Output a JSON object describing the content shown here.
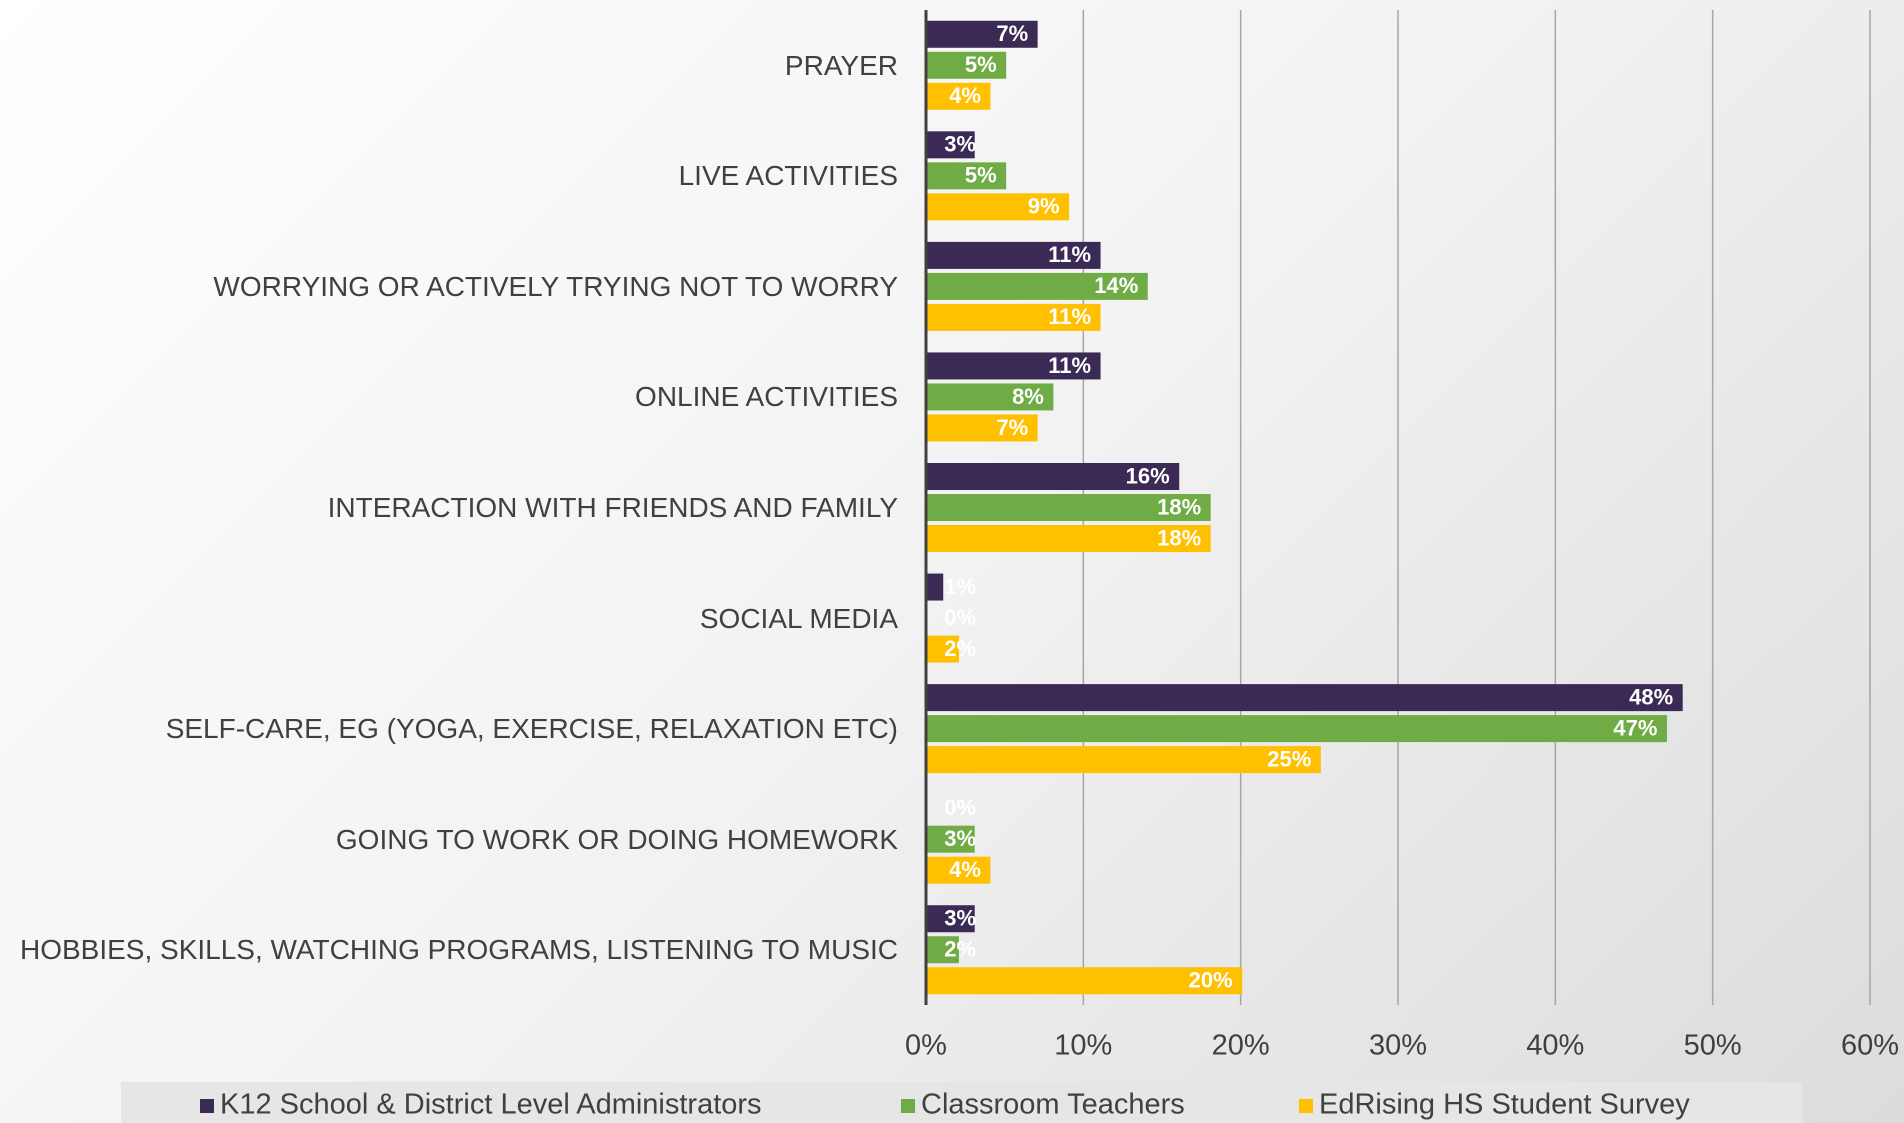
{
  "chart_data": {
    "type": "bar",
    "orientation": "horizontal",
    "categories": [
      "PRAYER",
      "LIVE ACTIVITIES",
      "WORRYING OR ACTIVELY TRYING NOT TO WORRY",
      "ONLINE ACTIVITIES",
      "INTERACTION WITH FRIENDS AND FAMILY",
      "SOCIAL MEDIA",
      "SELF-CARE, EG (YOGA, EXERCISE,  RELAXATION ETC)",
      "GOING TO WORK OR DOING HOMEWORK",
      "HOBBIES, SKILLS, WATCHING PROGRAMS, LISTENING TO MUSIC"
    ],
    "series": [
      {
        "name": "K12 School & District Level Administrators",
        "color": "#3b2a55",
        "values": [
          7,
          3,
          11,
          11,
          16,
          1,
          48,
          0,
          3
        ],
        "value_labels": [
          "7%",
          "3%",
          "11%",
          "11%",
          "16%",
          "1%",
          "48%",
          "0%",
          "3%"
        ]
      },
      {
        "name": "Classroom Teachers",
        "color": "#6fac46",
        "values": [
          5,
          5,
          14,
          8,
          18,
          0,
          47,
          3,
          2
        ],
        "value_labels": [
          "5%",
          "5%",
          "14%",
          "8%",
          "18%",
          "0%",
          "47%",
          "3%",
          "2%"
        ]
      },
      {
        "name": "EdRising HS Student Survey",
        "color": "#ffc000",
        "values": [
          4,
          9,
          11,
          7,
          18,
          2,
          25,
          4,
          20
        ],
        "value_labels": [
          "4%",
          "9%",
          "11%",
          "7%",
          "18%",
          "2%",
          "25%",
          "4%",
          "20%"
        ]
      }
    ],
    "xlim": [
      0,
      60
    ],
    "xticks": [
      {
        "value": 0,
        "label": "0%"
      },
      {
        "value": 10,
        "label": "10%"
      },
      {
        "value": 20,
        "label": "20%"
      },
      {
        "value": 30,
        "label": "30%"
      },
      {
        "value": 40,
        "label": "40%"
      },
      {
        "value": 50,
        "label": "50%"
      },
      {
        "value": 60,
        "label": "60%"
      }
    ],
    "grid": true,
    "legend": "bottom"
  }
}
